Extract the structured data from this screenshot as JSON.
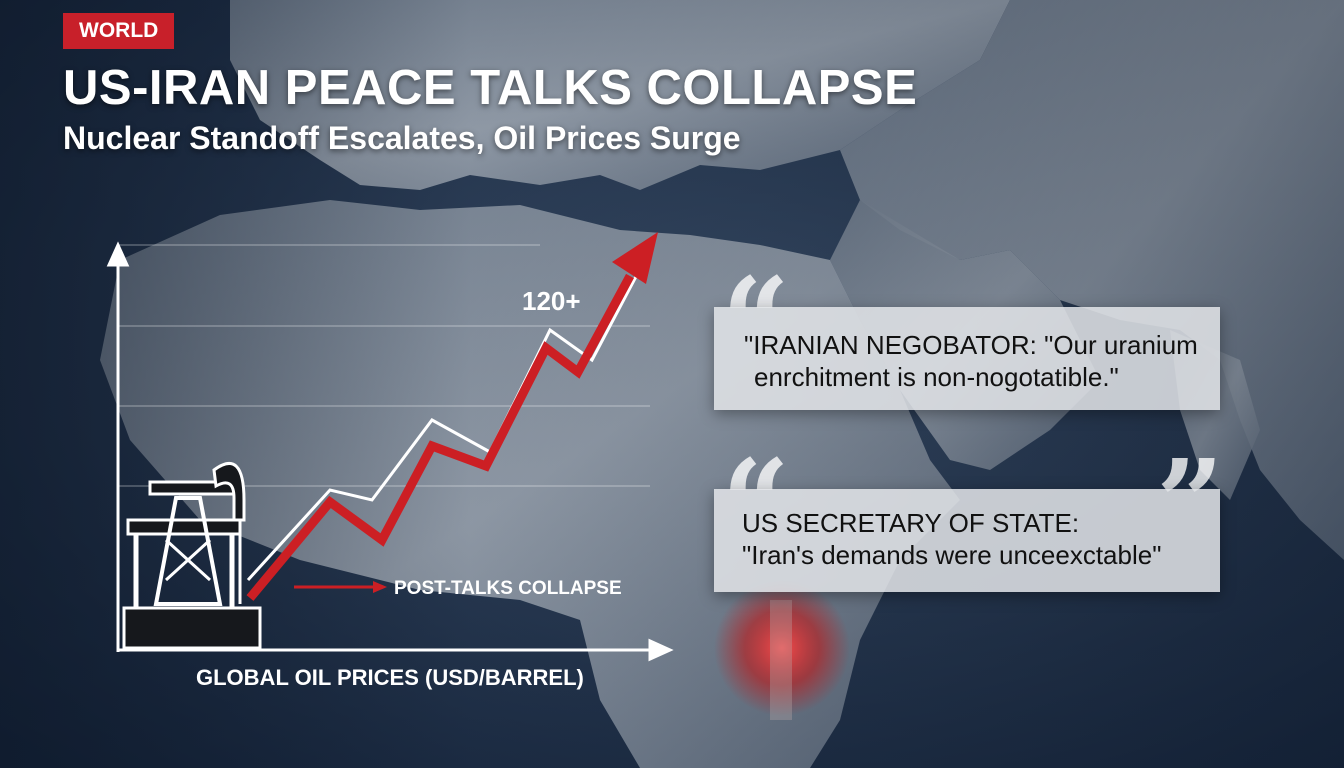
{
  "tag": {
    "label": "WORLD",
    "color": "#c8202a"
  },
  "headline": "US-IRAN PEACE TALKS COLLAPSE",
  "subheadline": "Nuclear Standoff Escalates, Oil Prices Surge",
  "chart": {
    "xlabel": "GLOBAL OIL PRICES (USD/BARREL)",
    "peak_label": "120+",
    "annotation": "POST-TALKS COLLAPSE",
    "trend_color": "#cc1f24"
  },
  "quotes": [
    {
      "lines": [
        "\"IRANIAN NEGOBATOR: \"Our uranium",
        "enrchitment is non-nogotatible.\""
      ]
    },
    {
      "lines": [
        "US SECRETARY OF STATE:",
        "\"Iran's demands were unceexctable\""
      ]
    }
  ],
  "quote_marks": {
    "open": "“",
    "close": "”"
  },
  "colors": {
    "accent": "#cc1f24",
    "map_ocean": "#1c2d44",
    "map_land": "#8f9aa8"
  }
}
